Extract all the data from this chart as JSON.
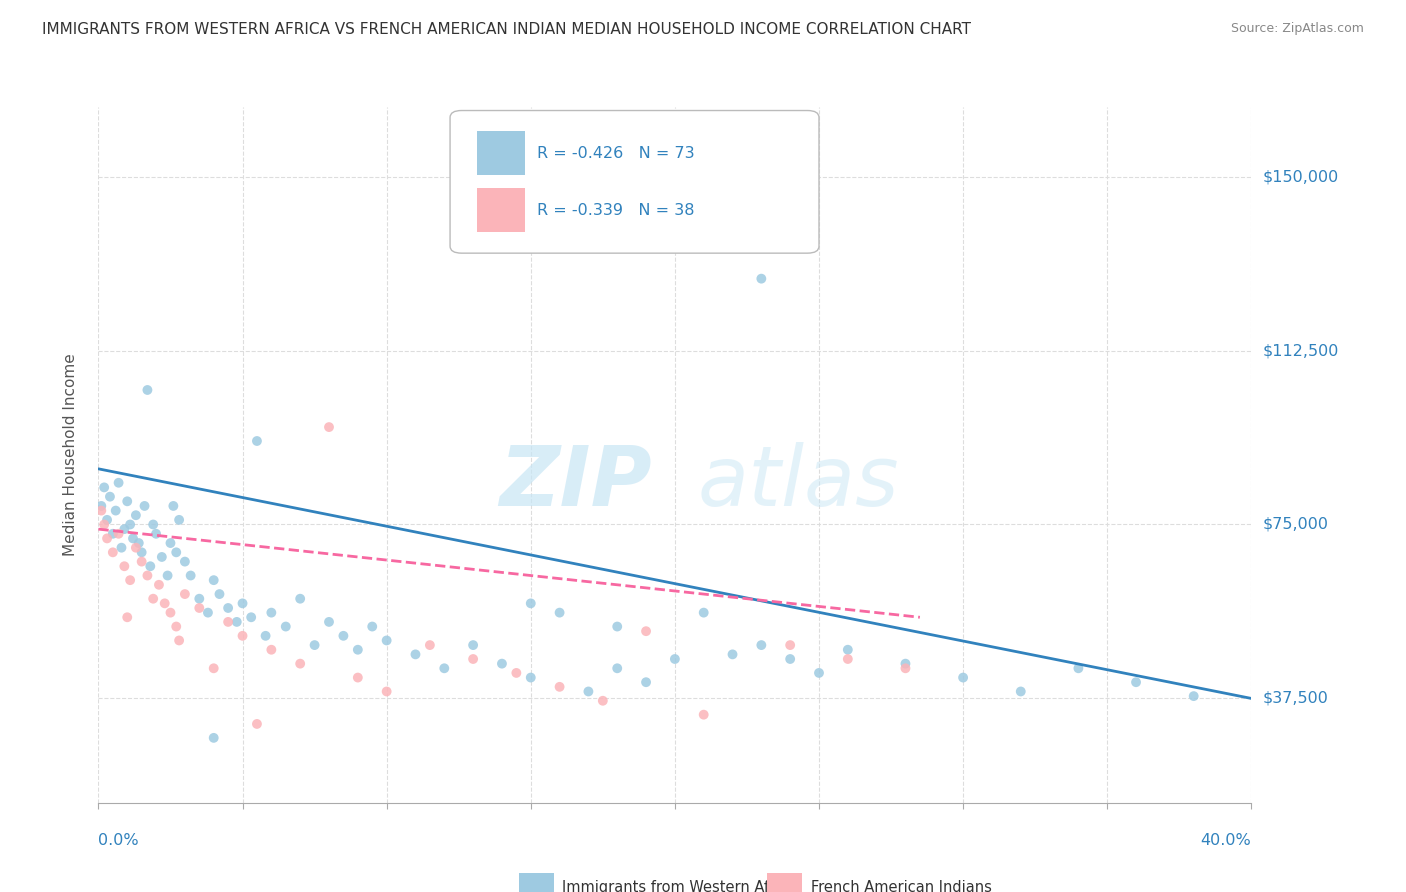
{
  "title": "IMMIGRANTS FROM WESTERN AFRICA VS FRENCH AMERICAN INDIAN MEDIAN HOUSEHOLD INCOME CORRELATION CHART",
  "source": "Source: ZipAtlas.com",
  "ylabel": "Median Household Income",
  "yticks": [
    37500,
    75000,
    112500,
    150000
  ],
  "ytick_labels": [
    "$37,500",
    "$75,000",
    "$112,500",
    "$150,000"
  ],
  "xmin": 0.0,
  "xmax": 0.4,
  "ymin": 15000,
  "ymax": 165000,
  "legend_blue_r": "-0.426",
  "legend_blue_n": "73",
  "legend_pink_r": "-0.339",
  "legend_pink_n": "38",
  "legend_label_blue": "Immigrants from Western Africa",
  "legend_label_pink": "French American Indians",
  "blue_color": "#9ecae1",
  "pink_color": "#fbb4b9",
  "trendline_blue_color": "#3182bd",
  "trendline_pink_color": "#f768a1",
  "accent_color": "#3182bd",
  "blue_scatter": [
    [
      0.001,
      79000
    ],
    [
      0.002,
      83000
    ],
    [
      0.003,
      76000
    ],
    [
      0.004,
      81000
    ],
    [
      0.005,
      73000
    ],
    [
      0.006,
      78000
    ],
    [
      0.007,
      84000
    ],
    [
      0.008,
      70000
    ],
    [
      0.009,
      74000
    ],
    [
      0.01,
      80000
    ],
    [
      0.011,
      75000
    ],
    [
      0.012,
      72000
    ],
    [
      0.013,
      77000
    ],
    [
      0.014,
      71000
    ],
    [
      0.015,
      69000
    ],
    [
      0.016,
      79000
    ],
    [
      0.017,
      104000
    ],
    [
      0.018,
      66000
    ],
    [
      0.019,
      75000
    ],
    [
      0.02,
      73000
    ],
    [
      0.022,
      68000
    ],
    [
      0.024,
      64000
    ],
    [
      0.025,
      71000
    ],
    [
      0.026,
      79000
    ],
    [
      0.027,
      69000
    ],
    [
      0.028,
      76000
    ],
    [
      0.03,
      67000
    ],
    [
      0.032,
      64000
    ],
    [
      0.035,
      59000
    ],
    [
      0.038,
      56000
    ],
    [
      0.04,
      63000
    ],
    [
      0.042,
      60000
    ],
    [
      0.045,
      57000
    ],
    [
      0.048,
      54000
    ],
    [
      0.05,
      58000
    ],
    [
      0.053,
      55000
    ],
    [
      0.055,
      93000
    ],
    [
      0.058,
      51000
    ],
    [
      0.06,
      56000
    ],
    [
      0.065,
      53000
    ],
    [
      0.07,
      59000
    ],
    [
      0.075,
      49000
    ],
    [
      0.08,
      54000
    ],
    [
      0.085,
      51000
    ],
    [
      0.09,
      48000
    ],
    [
      0.095,
      53000
    ],
    [
      0.1,
      50000
    ],
    [
      0.11,
      47000
    ],
    [
      0.12,
      44000
    ],
    [
      0.13,
      49000
    ],
    [
      0.14,
      45000
    ],
    [
      0.15,
      42000
    ],
    [
      0.16,
      56000
    ],
    [
      0.17,
      39000
    ],
    [
      0.18,
      44000
    ],
    [
      0.19,
      41000
    ],
    [
      0.2,
      46000
    ],
    [
      0.21,
      56000
    ],
    [
      0.22,
      47000
    ],
    [
      0.23,
      49000
    ],
    [
      0.24,
      46000
    ],
    [
      0.25,
      43000
    ],
    [
      0.26,
      48000
    ],
    [
      0.28,
      45000
    ],
    [
      0.3,
      42000
    ],
    [
      0.32,
      39000
    ],
    [
      0.34,
      44000
    ],
    [
      0.36,
      41000
    ],
    [
      0.38,
      38000
    ],
    [
      0.23,
      128000
    ],
    [
      0.04,
      29000
    ],
    [
      0.15,
      58000
    ],
    [
      0.18,
      53000
    ]
  ],
  "pink_scatter": [
    [
      0.001,
      78000
    ],
    [
      0.002,
      75000
    ],
    [
      0.003,
      72000
    ],
    [
      0.005,
      69000
    ],
    [
      0.007,
      73000
    ],
    [
      0.009,
      66000
    ],
    [
      0.011,
      63000
    ],
    [
      0.013,
      70000
    ],
    [
      0.015,
      67000
    ],
    [
      0.017,
      64000
    ],
    [
      0.019,
      59000
    ],
    [
      0.021,
      62000
    ],
    [
      0.023,
      58000
    ],
    [
      0.025,
      56000
    ],
    [
      0.027,
      53000
    ],
    [
      0.03,
      60000
    ],
    [
      0.035,
      57000
    ],
    [
      0.04,
      44000
    ],
    [
      0.045,
      54000
    ],
    [
      0.05,
      51000
    ],
    [
      0.06,
      48000
    ],
    [
      0.07,
      45000
    ],
    [
      0.08,
      96000
    ],
    [
      0.09,
      42000
    ],
    [
      0.1,
      39000
    ],
    [
      0.115,
      49000
    ],
    [
      0.13,
      46000
    ],
    [
      0.145,
      43000
    ],
    [
      0.16,
      40000
    ],
    [
      0.175,
      37000
    ],
    [
      0.19,
      52000
    ],
    [
      0.21,
      34000
    ],
    [
      0.01,
      55000
    ],
    [
      0.028,
      50000
    ],
    [
      0.055,
      32000
    ],
    [
      0.24,
      49000
    ],
    [
      0.26,
      46000
    ],
    [
      0.28,
      44000
    ]
  ],
  "blue_trend_x": [
    0.0,
    0.4
  ],
  "blue_trend_y": [
    87000,
    37500
  ],
  "pink_trend_x": [
    0.0,
    0.285
  ],
  "pink_trend_y": [
    74000,
    55000
  ]
}
